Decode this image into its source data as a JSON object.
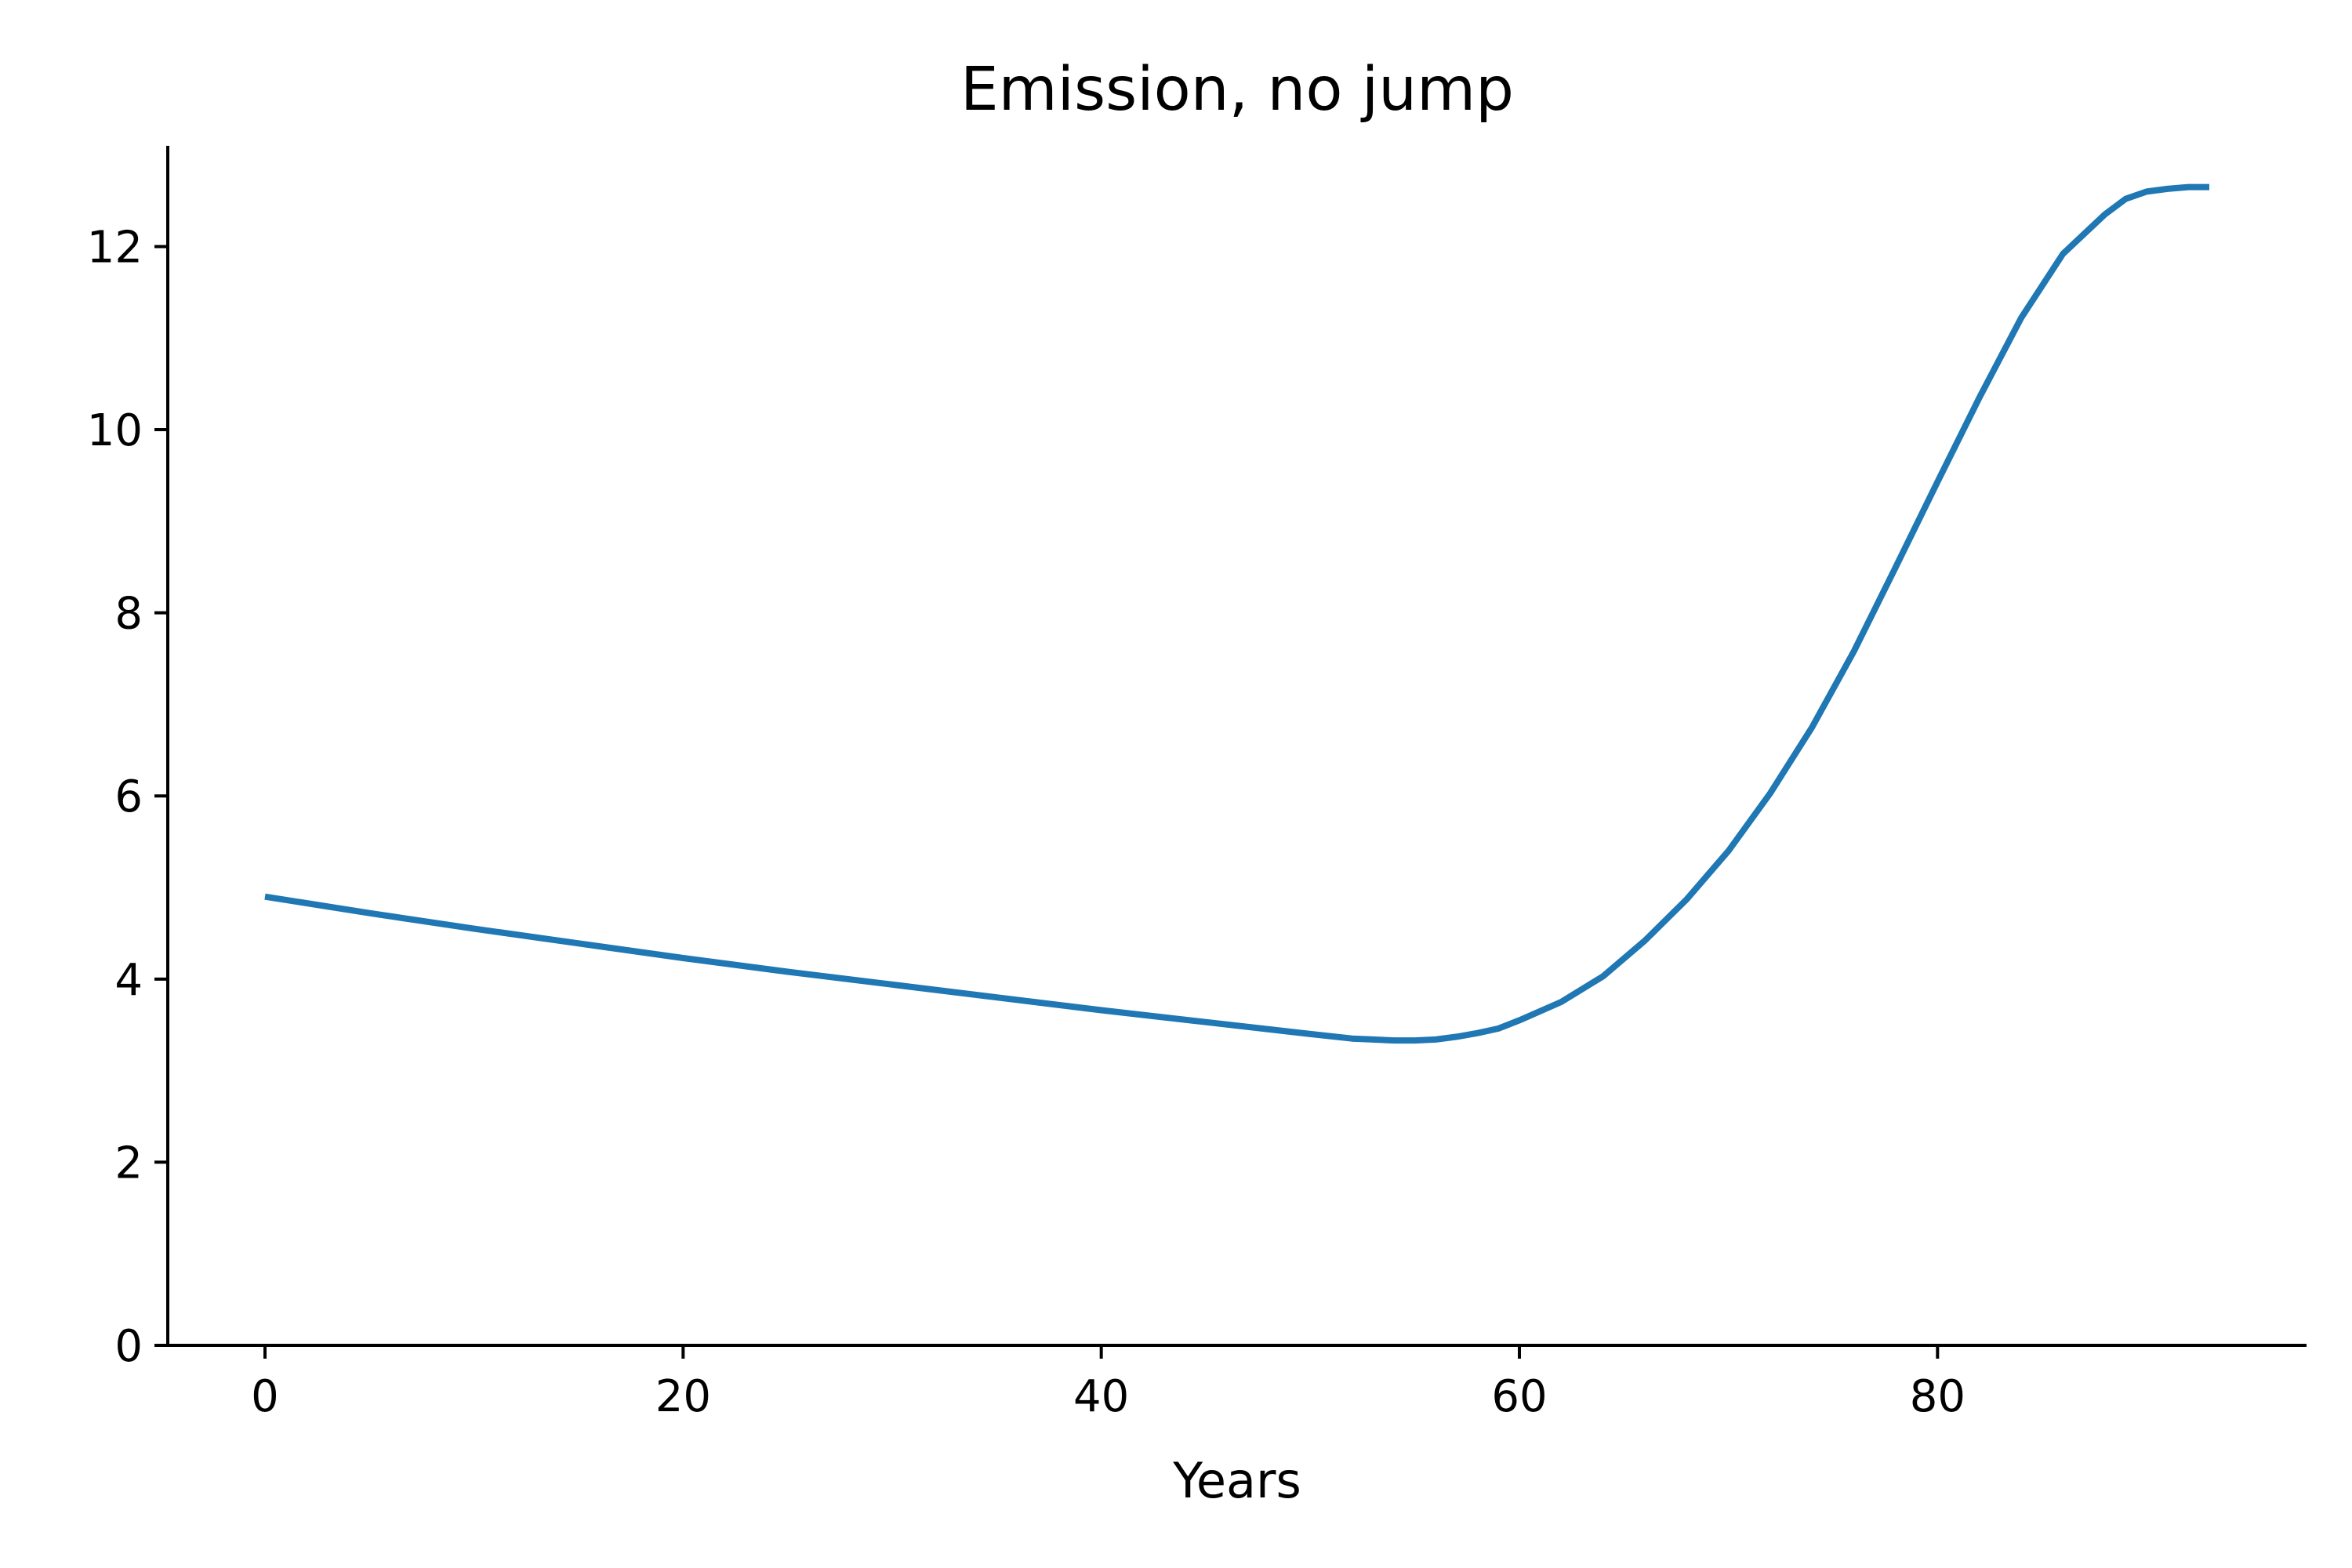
{
  "chart_data": {
    "type": "line",
    "title": "Emission, no jump",
    "xlabel": "Years",
    "ylabel": "",
    "xlim": [
      -4.65,
      97.65
    ],
    "ylim": [
      0,
      13.1
    ],
    "xticks": [
      0,
      20,
      40,
      60,
      80
    ],
    "yticks": [
      0,
      2,
      4,
      6,
      8,
      10,
      12
    ],
    "xtick_labels": [
      "0",
      "20",
      "40",
      "60",
      "80"
    ],
    "ytick_labels": [
      "0",
      "2",
      "4",
      "6",
      "8",
      "10",
      "12"
    ],
    "grid": false,
    "legend": "none",
    "series_color": "#1f77b4",
    "series": [
      {
        "x": [
          0,
          5,
          10,
          15,
          20,
          25,
          30,
          35,
          40,
          45,
          50,
          52,
          53,
          54,
          55,
          56,
          57,
          58,
          59,
          60,
          62,
          64,
          66,
          68,
          70,
          72,
          74,
          76,
          78,
          80,
          82,
          84,
          86,
          88,
          89,
          90,
          91,
          92,
          93
        ],
        "y": [
          4.9,
          4.72,
          4.55,
          4.39,
          4.23,
          4.08,
          3.94,
          3.8,
          3.66,
          3.53,
          3.4,
          3.35,
          3.34,
          3.33,
          3.33,
          3.34,
          3.37,
          3.41,
          3.46,
          3.55,
          3.75,
          4.03,
          4.42,
          4.87,
          5.4,
          6.03,
          6.75,
          7.58,
          8.5,
          9.43,
          10.35,
          11.22,
          11.92,
          12.35,
          12.52,
          12.6,
          12.63,
          12.65,
          12.65
        ]
      }
    ]
  }
}
